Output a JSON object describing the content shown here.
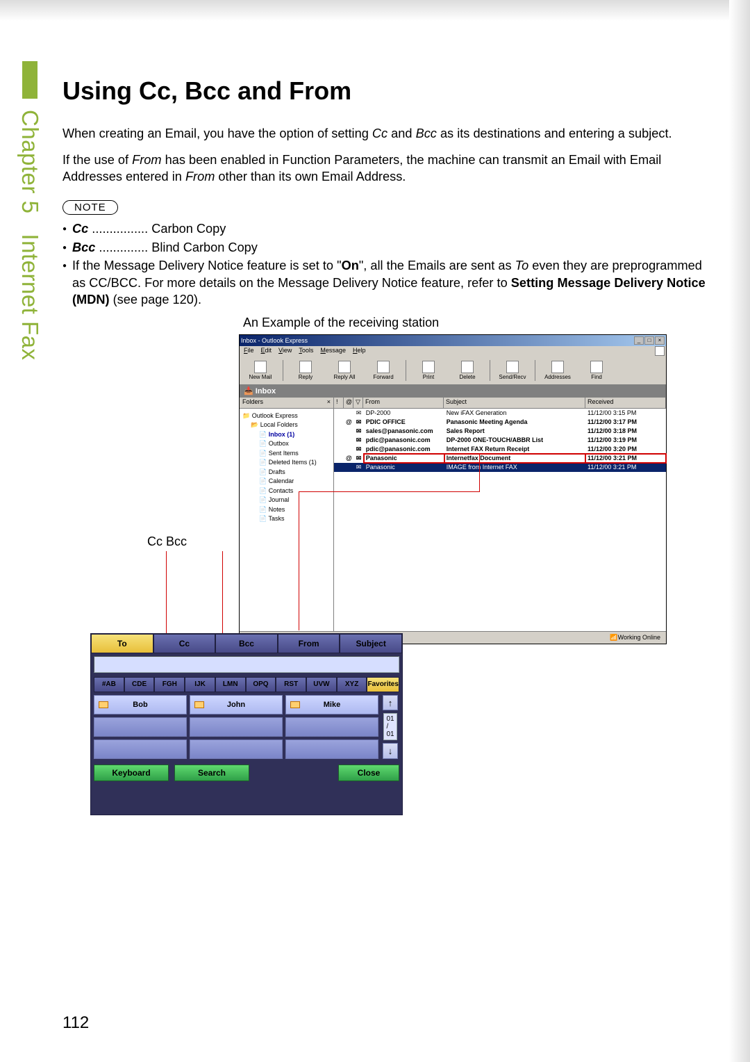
{
  "chapter": {
    "label": "Chapter 5",
    "section": "Internet Fax",
    "accent": "#8fb339"
  },
  "heading": "Using Cc, Bcc and From",
  "paragraphs": {
    "p1_a": "When creating an Email, you have the option of setting ",
    "p1_cc": "Cc",
    "p1_b": " and ",
    "p1_bcc": "Bcc",
    "p1_c": " as its destinations and entering a subject.",
    "p2_a": "If the use of ",
    "p2_from": "From",
    "p2_b": " has been enabled in Function Parameters, the machine can transmit an Email with Email Addresses entered in ",
    "p2_from2": "From",
    "p2_c": " other than its own Email Address."
  },
  "note_badge": "NOTE",
  "note_items": {
    "cc_term": "Cc",
    "cc_dots": " ................ ",
    "cc_def": "Carbon Copy",
    "bcc_term": "Bcc",
    "bcc_dots": " .............. ",
    "bcc_def": "Blind Carbon Copy",
    "n3_a": "If the Message Delivery Notice feature is set to \"",
    "n3_on": "On",
    "n3_b": "\", all the Emails are sent as ",
    "n3_to": "To",
    "n3_c": " even they are preprogrammed as CC/BCC. For more details on the Message Delivery Notice feature, refer to ",
    "n3_link": "Setting Message Delivery Notice (MDN)",
    "n3_d": " (see page 120)."
  },
  "caption": "An Example of the receiving station",
  "outlook": {
    "title": "Inbox - Outlook Express",
    "menubar": [
      "File",
      "Edit",
      "View",
      "Tools",
      "Message",
      "Help"
    ],
    "toolbar": [
      "New Mail",
      "Reply",
      "Reply All",
      "Forward",
      "Print",
      "Delete",
      "Send/Recv",
      "Addresses",
      "Find"
    ],
    "inbox_label": "Inbox",
    "folders_header": "Folders",
    "tree": [
      {
        "level": 1,
        "label": "Outlook Express"
      },
      {
        "level": 2,
        "label": "Local Folders"
      },
      {
        "level": 3,
        "label": "Inbox (1)",
        "selected": true
      },
      {
        "level": 3,
        "label": "Outbox"
      },
      {
        "level": 3,
        "label": "Sent Items"
      },
      {
        "level": 3,
        "label": "Deleted Items (1)"
      },
      {
        "level": 3,
        "label": "Drafts"
      },
      {
        "level": 3,
        "label": "Calendar"
      },
      {
        "level": 3,
        "label": "Contacts"
      },
      {
        "level": 3,
        "label": "Journal"
      },
      {
        "level": 3,
        "label": "Notes"
      },
      {
        "level": 3,
        "label": "Tasks"
      }
    ],
    "columns": {
      "from": "From",
      "subject": "Subject",
      "received": "Received"
    },
    "rows": [
      {
        "attach": "",
        "from": "DP-2000",
        "subject": "New iFAX Generation",
        "received": "11/12/00 3:15 PM",
        "bold": false
      },
      {
        "attach": "@",
        "from": "PDIC OFFICE",
        "subject": "Panasonic Meeting Agenda",
        "received": "11/12/00 3:17 PM",
        "bold": true
      },
      {
        "attach": "",
        "from": "sales@panasonic.com",
        "subject": "Sales Report",
        "received": "11/12/00 3:18 PM",
        "bold": true
      },
      {
        "attach": "",
        "from": "pdic@panasonic.com",
        "subject": "DP-2000 ONE-TOUCH/ABBR List",
        "received": "11/12/00 3:19 PM",
        "bold": true
      },
      {
        "attach": "",
        "from": "pdic@panasonic.com",
        "subject": "Internet FAX Return Receipt",
        "received": "11/12/00 3:20 PM",
        "bold": true
      },
      {
        "attach": "@",
        "from": "Panasonic",
        "subject": "Internetfax Document",
        "received": "11/12/00 3:21 PM",
        "bold": true,
        "highlight": true
      },
      {
        "attach": "",
        "from": "Panasonic",
        "subject": "IMAGE from Internet FAX",
        "received": "11/12/00 3:21 PM",
        "bold": false,
        "selected": true
      }
    ],
    "status": "Working Online"
  },
  "cc_label": "Cc   Bcc",
  "device": {
    "tabs1": [
      "To",
      "Cc",
      "Bcc",
      "From",
      "Subject"
    ],
    "tabs1_active": 0,
    "tabs2": [
      "#AB",
      "CDE",
      "FGH",
      "IJK",
      "LMN",
      "OPQ",
      "RST",
      "UVW",
      "XYZ",
      "Favorites"
    ],
    "tabs2_active": 9,
    "contacts": [
      "Bob",
      "John",
      "Mike"
    ],
    "pager": {
      "up": "↑",
      "count": "01 / 01",
      "down": "↓"
    },
    "buttons": {
      "keyboard": "Keyboard",
      "search": "Search",
      "close": "Close"
    }
  },
  "page_number": "112"
}
